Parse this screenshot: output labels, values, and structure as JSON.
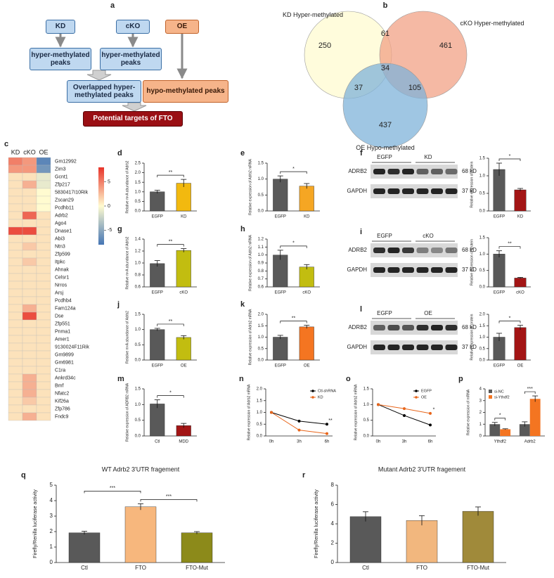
{
  "panel_a": {
    "label": "a",
    "nodes": [
      {
        "label": "KD"
      },
      {
        "label": "cKO"
      },
      {
        "label": "OE"
      },
      {
        "label": "hyper-methylated peaks"
      },
      {
        "label": "hyper-methylated peaks"
      },
      {
        "label": "Overlapped hyper-methylated peaks"
      },
      {
        "label": "hypo-methylated peaks"
      },
      {
        "label": "Potential targets of FTO"
      }
    ]
  },
  "venn": {
    "label": "b",
    "sets": [
      "KD Hyper-methylated",
      "cKO Hyper-methylated",
      "OE Hypo-methylated"
    ],
    "regions": [
      250,
      61,
      461,
      34,
      37,
      105,
      437
    ],
    "colors": [
      "#fffbd0",
      "#f2a186",
      "#7fb3da"
    ]
  },
  "heatmap": {
    "label": "c",
    "columns": [
      "KD",
      "cKO",
      "OE"
    ],
    "rows": [
      "Gm12992",
      "Zim3",
      "Gcnt1",
      "Zfp217",
      "5830417I10Rik",
      "Zscan29",
      "Pcdhb11",
      "Adrb2",
      "Ago4",
      "Dnase1",
      "Abi3",
      "Ntn3",
      "Zfp599",
      "Itpkc",
      "Ahnak",
      "Celsr1",
      "Nrros",
      "Arsj",
      "Pcdhb4",
      "Fam124a",
      "Dse",
      "Zfp551",
      "Pnma1",
      "Amer1",
      "9130024F11Rik",
      "Gm9899",
      "Gm6981",
      "C1ra",
      "Ankrd34c",
      "Bmf",
      "Nfatc2",
      "Kif26a",
      "Zfp786",
      "Fndc9"
    ],
    "values": [
      [
        5,
        4,
        -7
      ],
      [
        4,
        4,
        -6
      ],
      [
        1,
        1,
        -1
      ],
      [
        1,
        3,
        -1
      ],
      [
        1,
        1,
        0
      ],
      [
        1,
        1,
        0
      ],
      [
        1,
        1,
        0
      ],
      [
        1,
        6,
        1
      ],
      [
        1,
        1,
        1
      ],
      [
        7,
        7,
        1
      ],
      [
        1,
        1,
        1
      ],
      [
        1,
        2,
        1
      ],
      [
        1,
        1,
        1
      ],
      [
        1,
        2,
        1
      ],
      [
        1,
        1,
        1
      ],
      [
        1,
        1,
        1
      ],
      [
        1,
        1,
        1
      ],
      [
        1,
        1,
        1
      ],
      [
        1,
        1,
        1
      ],
      [
        1,
        3,
        1
      ],
      [
        1,
        7,
        1
      ],
      [
        1,
        1,
        1
      ],
      [
        1,
        1,
        1
      ],
      [
        1,
        1,
        1
      ],
      [
        1,
        1,
        1
      ],
      [
        1,
        1,
        1
      ],
      [
        1,
        1,
        1
      ],
      [
        1,
        1,
        1
      ],
      [
        1,
        3,
        1
      ],
      [
        1,
        3,
        1
      ],
      [
        1,
        3,
        1
      ],
      [
        1,
        2,
        1
      ],
      [
        1,
        1,
        1
      ],
      [
        1,
        3,
        1
      ]
    ],
    "zlim": [
      -8,
      8
    ],
    "zticks": [
      5,
      0,
      -5
    ],
    "colormap": [
      "#4575b4",
      "#fffbd0",
      "#e8342a"
    ]
  },
  "blots": [
    {
      "label": "f",
      "groups": [
        "EGFP",
        "KD"
      ],
      "proteins": [
        "ADRB2",
        "GAPDH"
      ],
      "sizes": [
        "68 kD",
        "37 kD"
      ]
    },
    {
      "label": "i",
      "groups": [
        "EGFP",
        "cKO"
      ],
      "proteins": [
        "ADRB2",
        "GAPDH"
      ],
      "sizes": [
        "68 kD",
        "37 kD"
      ]
    },
    {
      "label": "l",
      "groups": [
        "EGFP",
        "OE"
      ],
      "proteins": [
        "ADRB2",
        "GAPDH"
      ],
      "sizes": [
        "68 kD",
        "37 kD"
      ]
    }
  ],
  "chart_data": [
    {
      "type": "bar",
      "label": "d",
      "y_label": "Relative m⁶A abundance of Adrb2",
      "categories": [
        "EGFP",
        "KD"
      ],
      "values": [
        1.0,
        1.45
      ],
      "errors": [
        0.08,
        0.2
      ],
      "colors": [
        "#595959",
        "#f2b90f"
      ],
      "ylim": [
        0,
        2.5
      ],
      "yticks": [
        {
          "value": 0,
          "label": "0.0"
        },
        0.5,
        {
          "value": 1,
          "label": "1.0"
        },
        1.5,
        {
          "value": 2,
          "label": "2.0"
        },
        2.5
      ],
      "significance": [
        "**"
      ]
    },
    {
      "type": "bar",
      "label": "e",
      "y_label": "Relative expression of Adrb2 mRNA",
      "categories": [
        "EGFP",
        "KD"
      ],
      "values": [
        1.0,
        0.78
      ],
      "errors": [
        0.1,
        0.08
      ],
      "colors": [
        "#595959",
        "#f5a623"
      ],
      "ylim": [
        0,
        1.5
      ],
      "yticks": [
        {
          "value": 0,
          "label": "0.0"
        },
        0.5,
        {
          "value": 1,
          "label": "1.0"
        },
        1.5
      ],
      "significance": [
        "*"
      ]
    },
    {
      "type": "bar",
      "y_label": "Relative expression of protein",
      "categories": [
        "EGFP",
        "KD"
      ],
      "values": [
        1.18,
        0.6
      ],
      "errors": [
        0.18,
        0.04
      ],
      "colors": [
        "#595959",
        "#a31515"
      ],
      "ylim": [
        0,
        1.5
      ],
      "yticks": [
        {
          "value": 0,
          "label": "0.0"
        },
        0.5,
        {
          "value": 1,
          "label": "1.0"
        },
        1.5
      ],
      "significance": [
        "*"
      ]
    },
    {
      "type": "bar",
      "label": "g",
      "y_label": "Relative m⁶A abundance of Adrb2",
      "categories": [
        "EGFP",
        "cKO"
      ],
      "values": [
        0.99,
        1.21
      ],
      "errors": [
        0.05,
        0.03
      ],
      "colors": [
        "#595959",
        "#c2bd10"
      ],
      "ylim": [
        0.6,
        1.4
      ],
      "yticks": [
        0.6,
        0.8,
        {
          "value": 1,
          "label": "1.0"
        },
        1.2,
        1.4
      ],
      "significance": [
        "**"
      ]
    },
    {
      "type": "bar",
      "label": "h",
      "y_label": "Relative expression of Adrb2 mRNA",
      "categories": [
        "EGFP",
        "cKO"
      ],
      "values": [
        1.0,
        0.85
      ],
      "errors": [
        0.06,
        0.03
      ],
      "colors": [
        "#595959",
        "#c2bd10"
      ],
      "ylim": [
        0.6,
        1.2
      ],
      "yticks": [
        0.6,
        0.7,
        0.8,
        0.9,
        {
          "value": 1,
          "label": "1.0"
        },
        1.1,
        1.2
      ],
      "significance": [
        "*"
      ]
    },
    {
      "type": "bar",
      "y_label": "Relative expression of protein",
      "categories": [
        "EGFP",
        "cKO"
      ],
      "values": [
        1.0,
        0.27
      ],
      "errors": [
        0.1,
        0.02
      ],
      "colors": [
        "#595959",
        "#a31515"
      ],
      "ylim": [
        0,
        1.5
      ],
      "yticks": [
        {
          "value": 0,
          "label": "0.0"
        },
        0.5,
        {
          "value": 1,
          "label": "1.0"
        },
        1.5
      ],
      "significance": [
        "**"
      ]
    },
    {
      "type": "bar",
      "label": "j",
      "y_label": "Relative m⁶A abundance of Adrb2",
      "categories": [
        "EGFP",
        "OE"
      ],
      "values": [
        1.0,
        0.74
      ],
      "errors": [
        0.04,
        0.06
      ],
      "colors": [
        "#595959",
        "#c2bd10"
      ],
      "ylim": [
        0,
        1.5
      ],
      "yticks": [
        {
          "value": 0,
          "label": "0.0"
        },
        0.5,
        {
          "value": 1,
          "label": "1.0"
        },
        1.5
      ],
      "significance": [
        "**"
      ]
    },
    {
      "type": "bar",
      "label": "k",
      "y_label": "Relative expression of Adrb2 mRNA",
      "categories": [
        "EGFP",
        "OE"
      ],
      "values": [
        1.0,
        1.45
      ],
      "errors": [
        0.08,
        0.07
      ],
      "colors": [
        "#595959",
        "#f47521"
      ],
      "ylim": [
        0,
        2
      ],
      "yticks": [
        {
          "value": 0,
          "label": "0.0"
        },
        0.5,
        {
          "value": 1,
          "label": "1.0"
        },
        1.5,
        {
          "value": 2,
          "label": "2.0"
        }
      ],
      "significance": [
        "**"
      ]
    },
    {
      "type": "bar",
      "y_label": "Relative expression of protein",
      "categories": [
        "EGFP",
        "OE"
      ],
      "values": [
        1.0,
        1.42
      ],
      "errors": [
        0.17,
        0.1
      ],
      "colors": [
        "#595959",
        "#a31515"
      ],
      "ylim": [
        0,
        2
      ],
      "yticks": [
        {
          "value": 0,
          "label": "0.0"
        },
        0.5,
        {
          "value": 1,
          "label": "1.0"
        },
        1.5,
        {
          "value": 2,
          "label": "2.0"
        }
      ],
      "significance": [
        "*"
      ]
    },
    {
      "type": "bar",
      "label": "m",
      "y_label": "Relative expression of ADRB2 mRNA",
      "categories": [
        "Ctl",
        "MDD"
      ],
      "values": [
        1.02,
        0.33
      ],
      "errors": [
        0.13,
        0.07
      ],
      "colors": [
        "#595959",
        "#a31515"
      ],
      "ylim": [
        0,
        1.5
      ],
      "yticks": [
        {
          "value": 0,
          "label": "0.0"
        },
        0.5,
        {
          "value": 1,
          "label": "1.0"
        },
        1.5
      ],
      "significance": [
        "*"
      ]
    },
    {
      "type": "line",
      "label": "n",
      "y_label": "Relative expression of Adrb2 mRNA",
      "categories": [
        "0h",
        "3h",
        "6h"
      ],
      "series": [
        {
          "name": "Ctl-shRNA",
          "color": "#000000",
          "values": [
            1.0,
            0.63,
            0.5
          ]
        },
        {
          "name": "KD",
          "color": "#e8651a",
          "values": [
            1.0,
            0.25,
            0.1
          ]
        }
      ],
      "ylim": [
        0,
        2
      ],
      "yticks": [
        {
          "value": 0,
          "label": "0.0"
        },
        0.5,
        {
          "value": 1,
          "label": "1.0"
        },
        1.5,
        {
          "value": 2,
          "label": "2.0"
        }
      ],
      "significance": [
        "**"
      ]
    },
    {
      "type": "line",
      "label": "o",
      "y_label": "Relative expression of Adrb2 mRNA",
      "categories": [
        "0h",
        "3h",
        "6h"
      ],
      "series": [
        {
          "name": "EGFP",
          "color": "#000000",
          "values": [
            1.0,
            0.65,
            0.35
          ]
        },
        {
          "name": "OE",
          "color": "#e8651a",
          "values": [
            1.0,
            0.87,
            0.72
          ]
        }
      ],
      "ylim": [
        0,
        1.5
      ],
      "yticks": [
        {
          "value": 0,
          "label": "0.0"
        },
        0.5,
        {
          "value": 1,
          "label": "1.0"
        },
        1.5
      ],
      "significance": [
        "*"
      ]
    },
    {
      "type": "bar",
      "label": "p",
      "y_label": "Relative expression of mRNA",
      "categories": [
        "Ythdf2",
        "Adrb2"
      ],
      "series": [
        {
          "name": "si-NC",
          "color": "#595959",
          "values": [
            1.0,
            1.0
          ],
          "errors": [
            0.15,
            0.2
          ]
        },
        {
          "name": "si-Ythdf2",
          "color": "#f47521",
          "values": [
            0.57,
            3.15
          ],
          "errors": [
            0.04,
            0.25
          ]
        }
      ],
      "ylim": [
        0,
        4
      ],
      "yticks": [
        0,
        1,
        2,
        3,
        4
      ],
      "significance": [
        "*",
        "***"
      ]
    },
    {
      "type": "bar",
      "label": "q",
      "title": "WT Adrb2 3'UTR fragement",
      "y_label": "Firefly/Renilla luciferase activity",
      "categories": [
        "Ctl",
        "FTO",
        "FTO-Mut"
      ],
      "values": [
        1.92,
        3.6,
        1.92
      ],
      "errors": [
        0.1,
        0.2,
        0.08
      ],
      "colors": [
        "#595959",
        "#f7b77d",
        "#8c8a1a"
      ],
      "ylim": [
        0,
        5
      ],
      "yticks": [
        0,
        1,
        2,
        3,
        4,
        5
      ],
      "significance": [
        "***",
        "***"
      ]
    },
    {
      "type": "bar",
      "label": "r",
      "title": "Mutant Adrb2 3'UTR fragement",
      "y_label": "Firefly/Renilla luciferase activity",
      "categories": [
        "Ctl",
        "FTO",
        "FTO-Mut"
      ],
      "values": [
        4.75,
        4.35,
        5.3
      ],
      "errors": [
        0.5,
        0.5,
        0.45
      ],
      "colors": [
        "#595959",
        "#f2b77e",
        "#a08a3a"
      ],
      "ylim": [
        0,
        8
      ],
      "yticks": [
        0,
        2,
        4,
        6,
        8
      ]
    }
  ]
}
